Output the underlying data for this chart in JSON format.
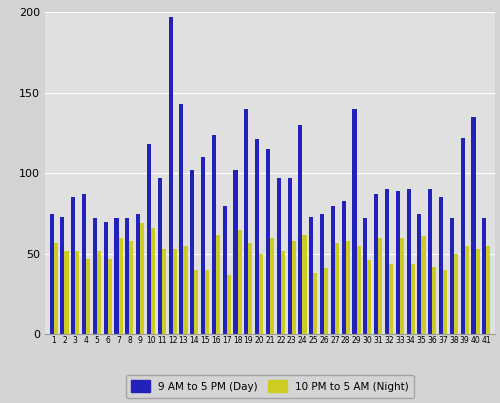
{
  "categories": [
    "1",
    "2",
    "3",
    "4",
    "5",
    "6",
    "7",
    "8",
    "9",
    "10",
    "11",
    "12",
    "13",
    "14",
    "15",
    "16",
    "17",
    "18",
    "19",
    "20",
    "21",
    "22",
    "23",
    "24",
    "25",
    "26",
    "27",
    "28",
    "29",
    "30",
    "31",
    "32",
    "33",
    "34",
    "35",
    "36",
    "37",
    "38",
    "39",
    "40",
    "41"
  ],
  "day_values": [
    75,
    73,
    85,
    87,
    72,
    70,
    72,
    72,
    75,
    118,
    97,
    197,
    143,
    102,
    110,
    124,
    80,
    102,
    140,
    121,
    115,
    97,
    97,
    130,
    73,
    75,
    80,
    83,
    140,
    72,
    87,
    90,
    89,
    90,
    75,
    90,
    85,
    72,
    122,
    135,
    72
  ],
  "night_values": [
    57,
    52,
    52,
    47,
    52,
    47,
    60,
    58,
    69,
    66,
    53,
    53,
    55,
    40,
    40,
    62,
    37,
    65,
    57,
    50,
    60,
    52,
    58,
    62,
    38,
    41,
    57,
    58,
    55,
    46,
    60,
    44,
    60,
    44,
    61,
    42,
    40,
    50,
    55,
    53,
    55
  ],
  "day_color": "#2222bb",
  "night_color": "#cccc22",
  "bg_color": "#d4d4d4",
  "plot_bg_color": "#e0e0e0",
  "ylim": [
    0,
    200
  ],
  "yticks": [
    0,
    50,
    100,
    150,
    200
  ],
  "legend_day": "9 AM to 5 PM (Day)",
  "legend_night": "10 PM to 5 AM (Night)",
  "bar_width": 0.38,
  "figwidth": 5.0,
  "figheight": 4.03,
  "dpi": 100
}
